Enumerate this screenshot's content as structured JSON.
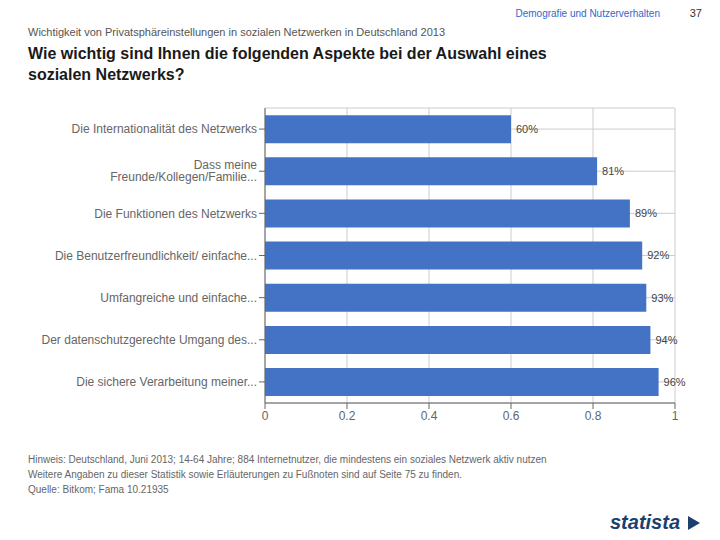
{
  "chart_data": {
    "type": "bar",
    "orientation": "horizontal",
    "title": "Wie wichtig sind Ihnen die folgenden Aspekte bei der Auswahl eines\nsozialen Netzwerks?",
    "subtitle": "Wichtigkeit von Privatsphäreinstellungen in sozialen Netzwerken in Deutschland 2013",
    "annotations": [
      "Demografie und Nutzerverhalten",
      "37",
      "Hinweis: Deutschland, Juni 2013; 14-64 Jahre; 884 Internetnutzer, die mindestens ein soziales Netzwerk aktiv nutzen",
      "Weitere Angaben zu dieser Statistik sowie Erläuterungen zu Fußnoten sind auf Seite 75 zu finden.",
      "Quelle: Bitkom; Fama 10.21935",
      "statista"
    ],
    "categories": [
      "Die Internationalität des Netzwerks",
      "Dass meine Freunde/Kollegen/Familie...",
      "Die Funktionen des Netzwerks",
      "Die Benutzerfreundlichkeit/ einfache...",
      "Umfangreiche und einfache...",
      "Der datenschutzgerechte Umgang des...",
      "Die sichere Verarbeitung meiner..."
    ],
    "values": [
      0.6,
      0.81,
      0.89,
      0.92,
      0.93,
      0.94,
      0.96
    ],
    "value_labels": [
      "60%",
      "81%",
      "89%",
      "92%",
      "93%",
      "94%",
      "96%"
    ],
    "data_labels": true,
    "color": "#4472C4",
    "xlim": [
      0,
      1.0
    ],
    "xticks": [
      0,
      0.2,
      0.4,
      0.6,
      0.8,
      1.0
    ],
    "grid": true
  }
}
